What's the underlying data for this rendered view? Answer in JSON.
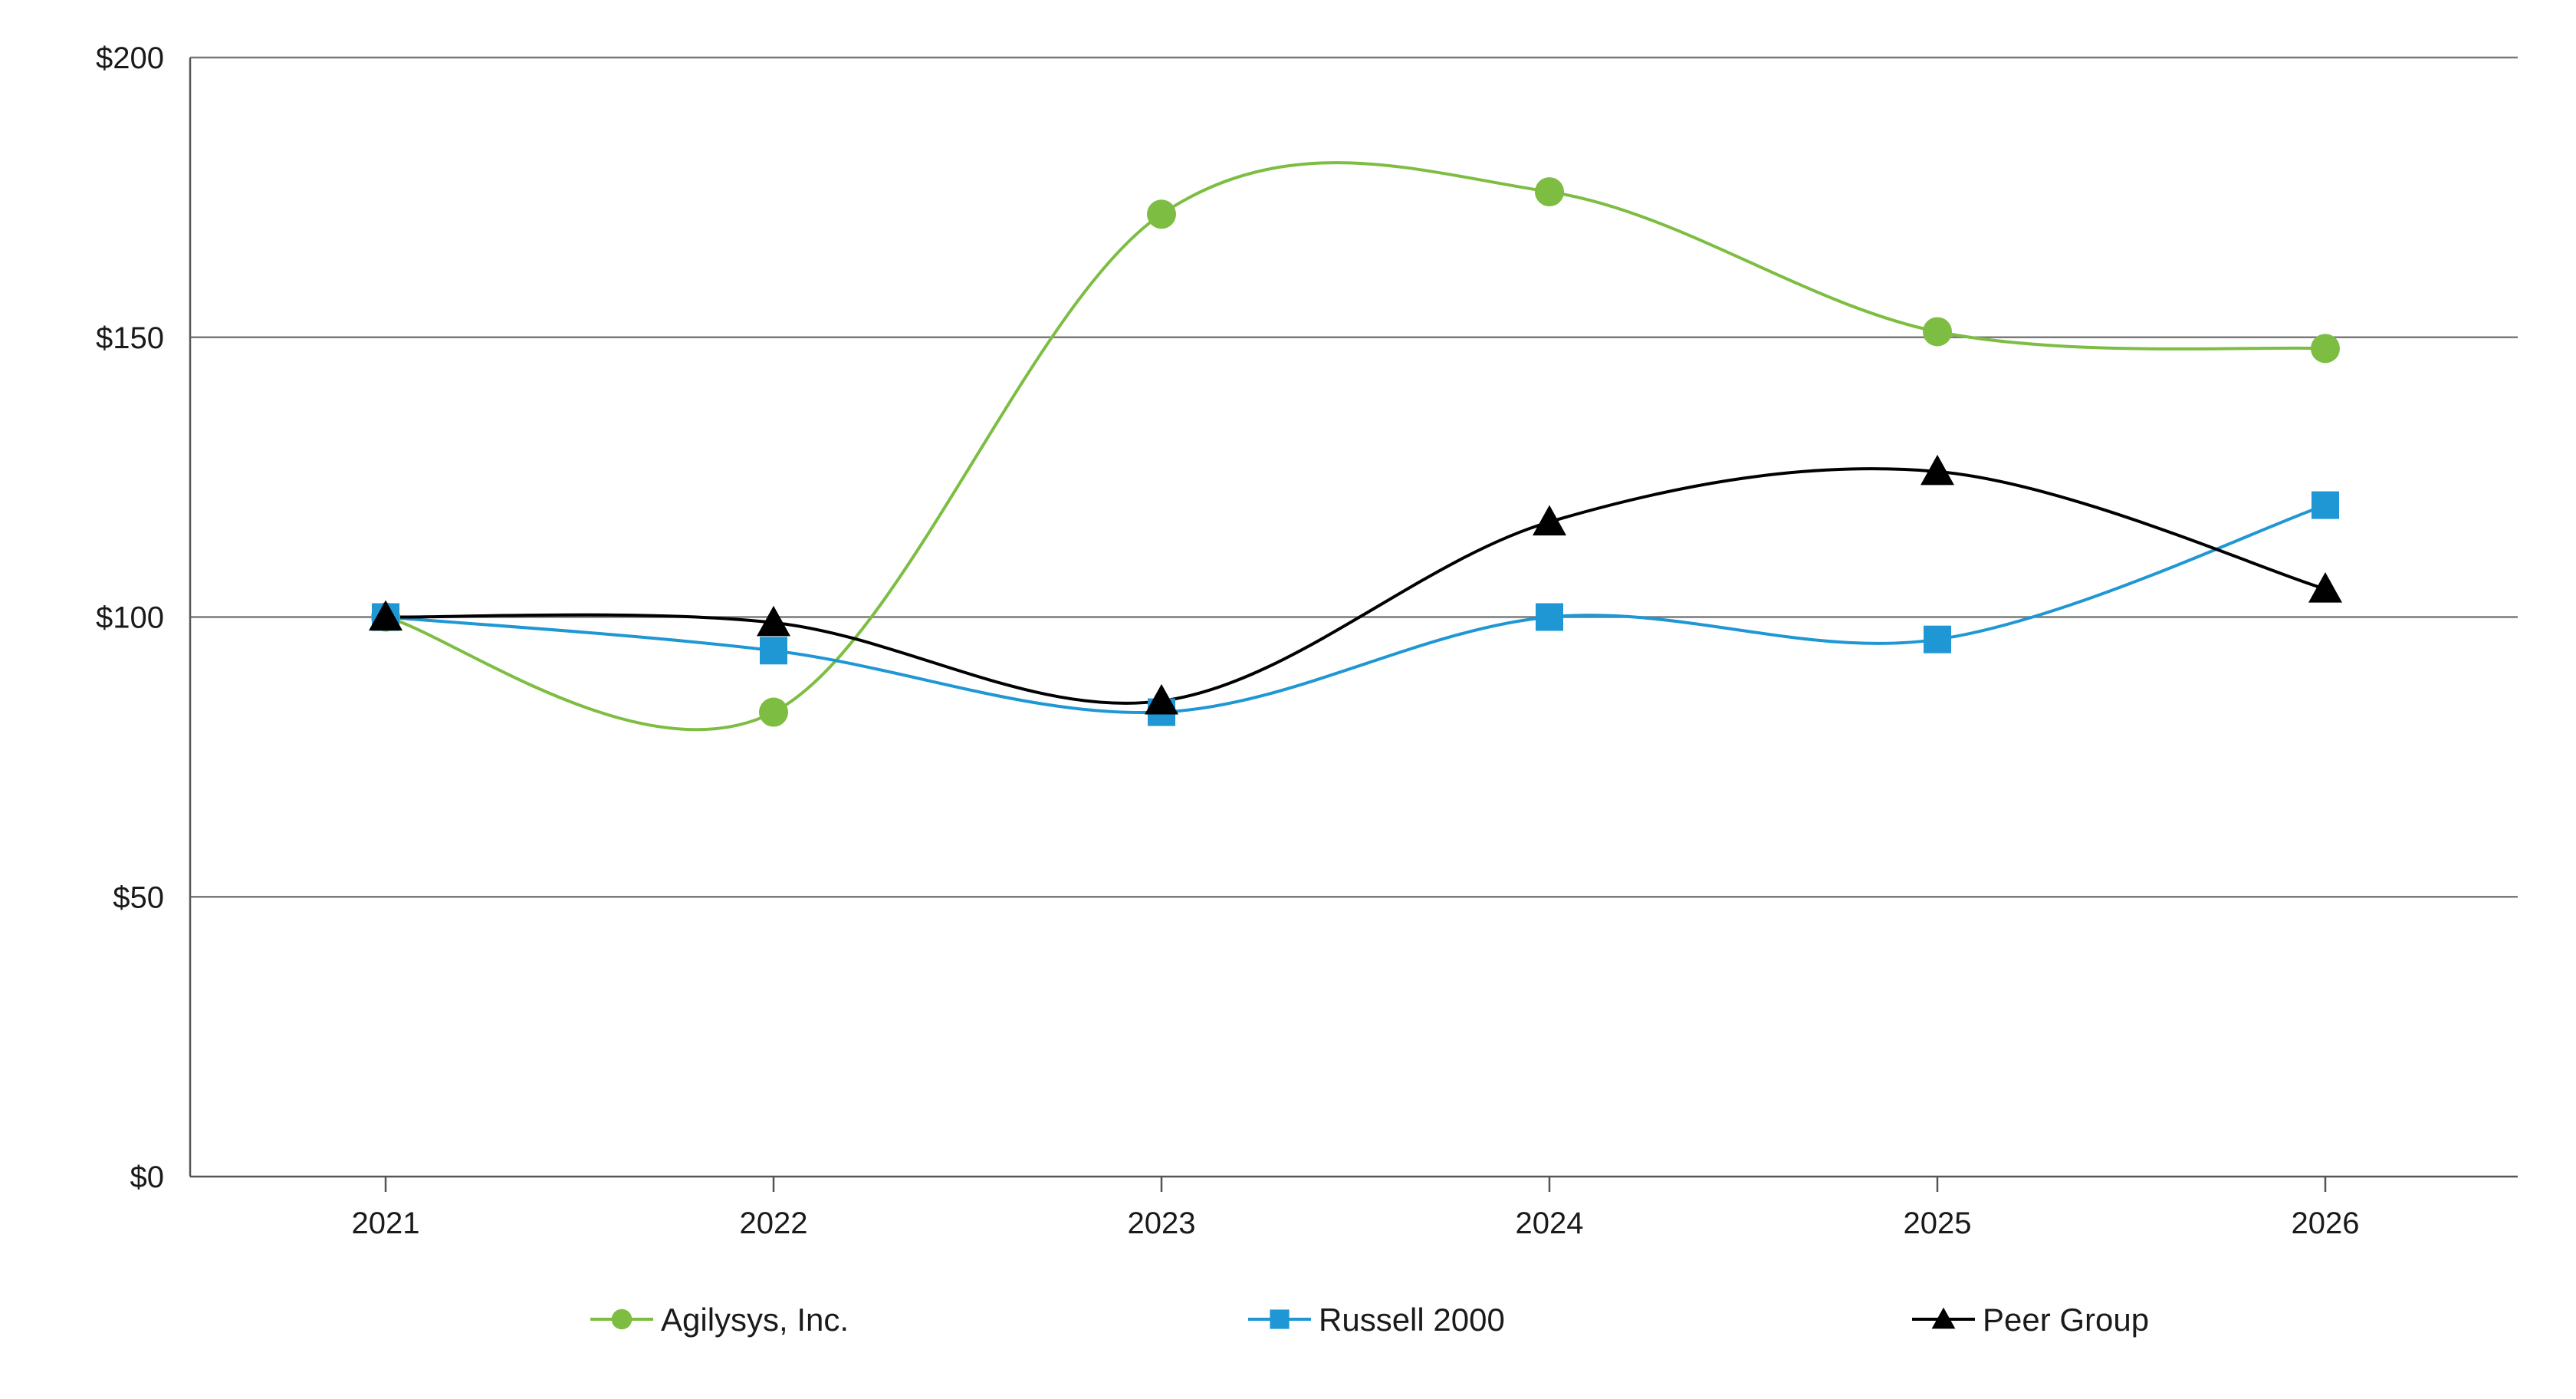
{
  "chart_data": {
    "type": "line",
    "title": "",
    "xlabel": "",
    "ylabel": "",
    "categories": [
      "2021",
      "2022",
      "2023",
      "2024",
      "2025",
      "2026"
    ],
    "ylim": [
      0,
      200
    ],
    "yticks": [
      0,
      50,
      100,
      150,
      200
    ],
    "ytick_labels": [
      "$0",
      "$50",
      "$100",
      "$150",
      "$200"
    ],
    "grid": "horizontal",
    "legend_position": "bottom",
    "smooth": true,
    "series": [
      {
        "name": "Agilysys, Inc.",
        "marker": "circle",
        "color": "#7dbd42",
        "values": [
          100,
          83,
          172,
          176,
          151,
          148
        ]
      },
      {
        "name": "Russell 2000",
        "marker": "square",
        "color": "#1f97d4",
        "values": [
          100,
          94,
          83,
          100,
          96,
          120
        ]
      },
      {
        "name": "Peer Group",
        "marker": "triangle",
        "color": "#000000",
        "values": [
          100,
          99,
          85,
          117,
          126,
          105
        ]
      }
    ]
  }
}
